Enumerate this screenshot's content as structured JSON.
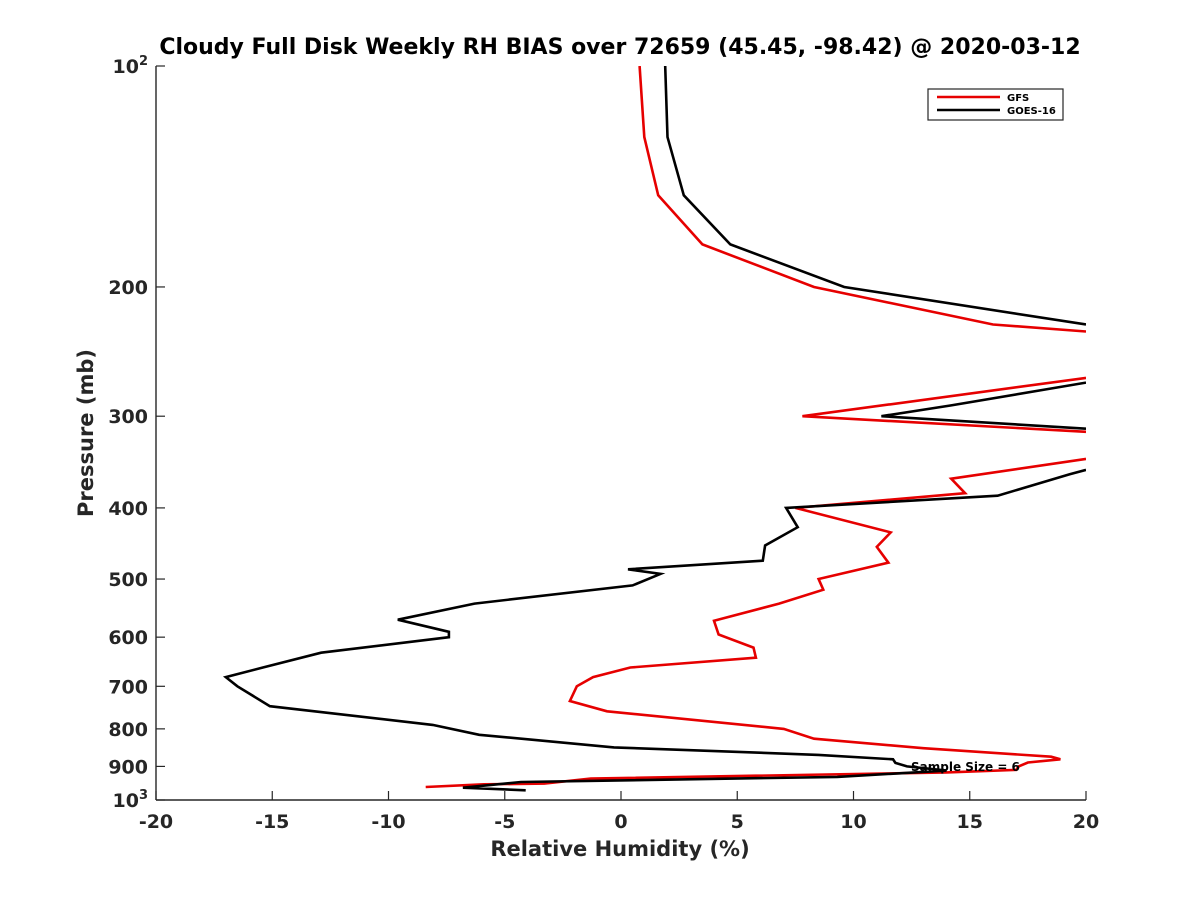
{
  "chart_data": {
    "type": "line",
    "title": "Cloudy Full Disk Weekly RH BIAS over 72659 (45.45, -98.42) @ 2020-03-12",
    "xlabel": "Relative Humidity (%)",
    "ylabel": "Pressure (mb)",
    "xlim": [
      -20,
      20
    ],
    "ylim": [
      100,
      1000
    ],
    "y_scale": "log",
    "y_reversed": true,
    "grid": false,
    "legend_position": "top-right",
    "annotation": "Sample Size = 6",
    "x_ticks": [
      -20,
      -15,
      -10,
      -5,
      0,
      5,
      10,
      15,
      20
    ],
    "x_tick_labels": [
      "-20",
      "-15",
      "-10",
      "-5",
      "0",
      "5",
      "10",
      "15",
      "20"
    ],
    "y_ticks": [
      100,
      200,
      300,
      400,
      500,
      600,
      700,
      800,
      900,
      1000
    ],
    "y_tick_labels": [
      {
        "base": "10",
        "exp": "2"
      },
      {
        "base": "200",
        "exp": ""
      },
      {
        "base": "300",
        "exp": ""
      },
      {
        "base": "400",
        "exp": ""
      },
      {
        "base": "500",
        "exp": ""
      },
      {
        "base": "600",
        "exp": ""
      },
      {
        "base": "700",
        "exp": ""
      },
      {
        "base": "800",
        "exp": ""
      },
      {
        "base": "900",
        "exp": ""
      },
      {
        "base": "10",
        "exp": "3"
      }
    ],
    "series": [
      {
        "name": "GFS",
        "color": "#e60000",
        "points": [
          [
            0.8,
            100
          ],
          [
            1.0,
            125
          ],
          [
            1.6,
            150
          ],
          [
            3.5,
            175
          ],
          [
            8.3,
            200
          ],
          [
            16,
            225
          ],
          [
            20,
            230
          ],
          [
            null,
            250
          ],
          [
            20,
            266
          ],
          [
            7.8,
            300
          ],
          [
            20,
            315
          ],
          [
            null,
            330
          ],
          [
            20,
            343
          ],
          [
            14.2,
            365
          ],
          [
            14.8,
            382
          ],
          [
            7.5,
            400
          ],
          [
            11.6,
            432
          ],
          [
            11.0,
            452
          ],
          [
            11.5,
            475
          ],
          [
            8.5,
            500
          ],
          [
            8.7,
            517
          ],
          [
            6.8,
            540
          ],
          [
            4.0,
            570
          ],
          [
            4.2,
            595
          ],
          [
            5.7,
            620
          ],
          [
            5.8,
            640
          ],
          [
            0.4,
            660
          ],
          [
            -1.2,
            680
          ],
          [
            -1.9,
            700
          ],
          [
            -2.2,
            733
          ],
          [
            -0.6,
            757
          ],
          [
            7.0,
            800
          ],
          [
            8.3,
            825
          ],
          [
            13.0,
            850
          ],
          [
            18.5,
            873
          ],
          [
            18.9,
            880
          ],
          [
            17.5,
            889
          ],
          [
            17.1,
            900
          ],
          [
            17.0,
            910
          ],
          [
            14.0,
            917
          ],
          [
            -1.3,
            935
          ],
          [
            -3.3,
            950
          ],
          [
            -5.9,
            952
          ],
          [
            -8.4,
            960
          ]
        ]
      },
      {
        "name": "GOES-16",
        "color": "#000000",
        "points": [
          [
            1.9,
            100
          ],
          [
            2.0,
            125
          ],
          [
            2.7,
            150
          ],
          [
            4.7,
            175
          ],
          [
            9.6,
            200
          ],
          [
            20,
            225
          ],
          [
            null,
            250
          ],
          [
            20,
            270
          ],
          [
            14.2,
            290
          ],
          [
            11.2,
            300
          ],
          [
            20,
            312
          ],
          [
            null,
            330
          ],
          [
            20,
            355
          ],
          [
            19.3,
            360
          ],
          [
            16.2,
            385
          ],
          [
            7.1,
            400
          ],
          [
            7.6,
            425
          ],
          [
            6.2,
            450
          ],
          [
            6.1,
            472
          ],
          [
            0.3,
            485
          ],
          [
            1.7,
            492
          ],
          [
            0.5,
            510
          ],
          [
            -6.3,
            540
          ],
          [
            -9.6,
            568
          ],
          [
            -7.4,
            590
          ],
          [
            -7.4,
            600
          ],
          [
            -12.9,
            630
          ],
          [
            -15.4,
            660
          ],
          [
            -17.0,
            680
          ],
          [
            -16.5,
            700
          ],
          [
            -15.1,
            745
          ],
          [
            -8.1,
            790
          ],
          [
            -6.1,
            815
          ],
          [
            -0.3,
            848
          ],
          [
            8.5,
            868
          ],
          [
            11.7,
            880
          ],
          [
            11.8,
            890
          ],
          [
            12.3,
            900
          ],
          [
            14.0,
            912
          ],
          [
            9.3,
            930
          ],
          [
            -4.3,
            945
          ],
          [
            -6.8,
            962
          ],
          [
            -4.1,
            970
          ]
        ]
      }
    ]
  }
}
